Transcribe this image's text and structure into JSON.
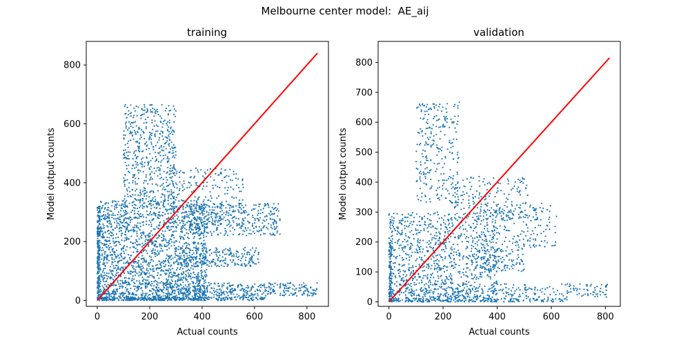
{
  "figure": {
    "suptitle": "Melbourne center model:  AE_aij"
  },
  "colors": {
    "scatter": "#1f77b4",
    "identity_line": "#ff0000",
    "axes_frame": "#000000",
    "background": "#ffffff"
  },
  "chart_data": [
    {
      "type": "scatter",
      "title": "training",
      "xlabel": "Actual counts",
      "ylabel": "Model output counts",
      "xlim": [
        -42,
        882
      ],
      "ylim": [
        -20,
        880
      ],
      "xticks": [
        0,
        200,
        400,
        600,
        800
      ],
      "yticks": [
        0,
        200,
        400,
        600,
        800
      ],
      "grid": false,
      "point_clusters": [
        {
          "name": "bulk",
          "x_range": [
            0,
            420
          ],
          "y_range": [
            0,
            340
          ],
          "approx_points": 2000
        },
        {
          "name": "upper-lobe",
          "x_range": [
            100,
            300
          ],
          "y_range": [
            330,
            665
          ],
          "approx_points": 520
        },
        {
          "name": "upper-tail",
          "x_range": [
            280,
            560
          ],
          "y_range": [
            250,
            450
          ],
          "approx_points": 260
        },
        {
          "name": "right-band-260",
          "x_range": [
            350,
            700
          ],
          "y_range": [
            220,
            330
          ],
          "approx_points": 320
        },
        {
          "name": "right-band-150",
          "x_range": [
            300,
            620
          ],
          "y_range": [
            115,
            180
          ],
          "approx_points": 260
        },
        {
          "name": "bottom-band-40",
          "x_range": [
            250,
            840
          ],
          "y_range": [
            15,
            60
          ],
          "approx_points": 380
        },
        {
          "name": "bottom-band-0",
          "x_range": [
            0,
            640
          ],
          "y_range": [
            0,
            12
          ],
          "approx_points": 260
        },
        {
          "name": "left-column",
          "x_range": [
            0,
            10
          ],
          "y_range": [
            0,
            320
          ],
          "approx_points": 160
        }
      ],
      "identity_line": {
        "x": [
          0,
          840
        ],
        "y": [
          0,
          840
        ]
      }
    },
    {
      "type": "scatter",
      "title": "validation",
      "xlabel": "Actual counts",
      "ylabel": "Model output counts",
      "xlim": [
        -40,
        855
      ],
      "ylim": [
        -15,
        870
      ],
      "xticks": [
        0,
        200,
        400,
        600,
        800
      ],
      "yticks": [
        0,
        100,
        200,
        300,
        400,
        500,
        600,
        700,
        800
      ],
      "grid": false,
      "point_clusters": [
        {
          "name": "bulk",
          "x_range": [
            0,
            400
          ],
          "y_range": [
            0,
            300
          ],
          "approx_points": 1100
        },
        {
          "name": "upper-lobe",
          "x_range": [
            100,
            260
          ],
          "y_range": [
            330,
            670
          ],
          "approx_points": 260
        },
        {
          "name": "upper-tail",
          "x_range": [
            240,
            520
          ],
          "y_range": [
            270,
            420
          ],
          "approx_points": 180
        },
        {
          "name": "right-band-250",
          "x_range": [
            350,
            620
          ],
          "y_range": [
            180,
            330
          ],
          "approx_points": 180
        },
        {
          "name": "right-band-150",
          "x_range": [
            300,
            500
          ],
          "y_range": [
            100,
            180
          ],
          "approx_points": 130
        },
        {
          "name": "bottom-band-40",
          "x_range": [
            200,
            810
          ],
          "y_range": [
            15,
            60
          ],
          "approx_points": 200
        },
        {
          "name": "bottom-band-0",
          "x_range": [
            0,
            660
          ],
          "y_range": [
            0,
            12
          ],
          "approx_points": 160
        },
        {
          "name": "left-column",
          "x_range": [
            0,
            10
          ],
          "y_range": [
            0,
            200
          ],
          "approx_points": 90
        }
      ],
      "identity_line": {
        "x": [
          0,
          815
        ],
        "y": [
          0,
          815
        ]
      }
    }
  ]
}
